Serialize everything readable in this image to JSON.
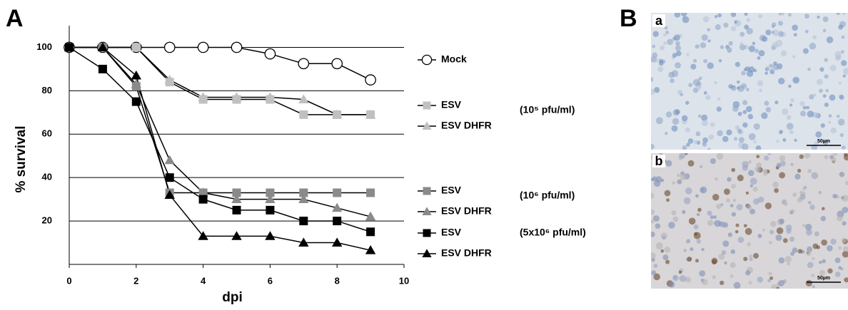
{
  "panel_labels": [
    "A",
    "B"
  ],
  "chart_data": {
    "type": "line",
    "x_label": "dpi",
    "y_label": "% survival",
    "x": [
      0,
      1,
      2,
      3,
      4,
      5,
      6,
      7,
      8,
      9
    ],
    "xlim": [
      0,
      10
    ],
    "xticks": [
      0,
      2,
      4,
      6,
      8,
      10
    ],
    "ylim": [
      0,
      110
    ],
    "yticks": [
      20,
      40,
      60,
      80,
      100
    ],
    "grid": true,
    "line_color": "#000000",
    "series": [
      {
        "name": "Mock",
        "marker": "circle",
        "color": "#000000",
        "marker_fill": "#ffffff",
        "values": [
          100,
          100,
          100,
          100,
          100,
          100,
          97,
          92.5,
          92.5,
          85
        ]
      },
      {
        "name": "ESV",
        "marker": "square",
        "color": "#c0c0c0",
        "marker_fill": "#c0c0c0",
        "values": [
          100,
          100,
          100,
          84,
          76,
          76,
          76,
          69,
          69,
          69
        ]
      },
      {
        "name": "ESV DHFR",
        "marker": "triangle",
        "color": "#c0c0c0",
        "marker_fill": "#c0c0c0",
        "values": [
          100,
          100,
          100,
          85,
          77,
          77,
          77,
          76,
          69,
          69
        ]
      },
      {
        "name": "ESV",
        "marker": "square",
        "color": "#8a8a8a",
        "marker_fill": "#8a8a8a",
        "values": [
          100,
          100,
          82,
          33,
          33,
          33,
          33,
          33,
          33,
          33
        ]
      },
      {
        "name": "ESV DHFR",
        "marker": "triangle",
        "color": "#8a8a8a",
        "marker_fill": "#8a8a8a",
        "values": [
          100,
          100,
          83,
          48,
          33,
          30,
          30,
          30,
          26,
          22
        ]
      },
      {
        "name": "ESV",
        "marker": "square",
        "color": "#000000",
        "marker_fill": "#000000",
        "values": [
          100,
          90,
          75,
          40,
          30,
          25,
          25,
          20,
          20,
          15
        ]
      },
      {
        "name": "ESV DHFR",
        "marker": "triangle",
        "color": "#000000",
        "marker_fill": "#000000",
        "values": [
          100,
          100,
          87,
          32,
          13,
          13,
          13,
          10,
          10,
          6.5
        ]
      }
    ],
    "dose_labels": [
      "(10⁵ pfu/ml)",
      "(10⁶ pfu/ml)",
      "(5x10⁶ pfu/ml)"
    ]
  },
  "images": [
    {
      "label": "a",
      "scale": "50µm"
    },
    {
      "label": "b",
      "scale": "50µm"
    }
  ]
}
